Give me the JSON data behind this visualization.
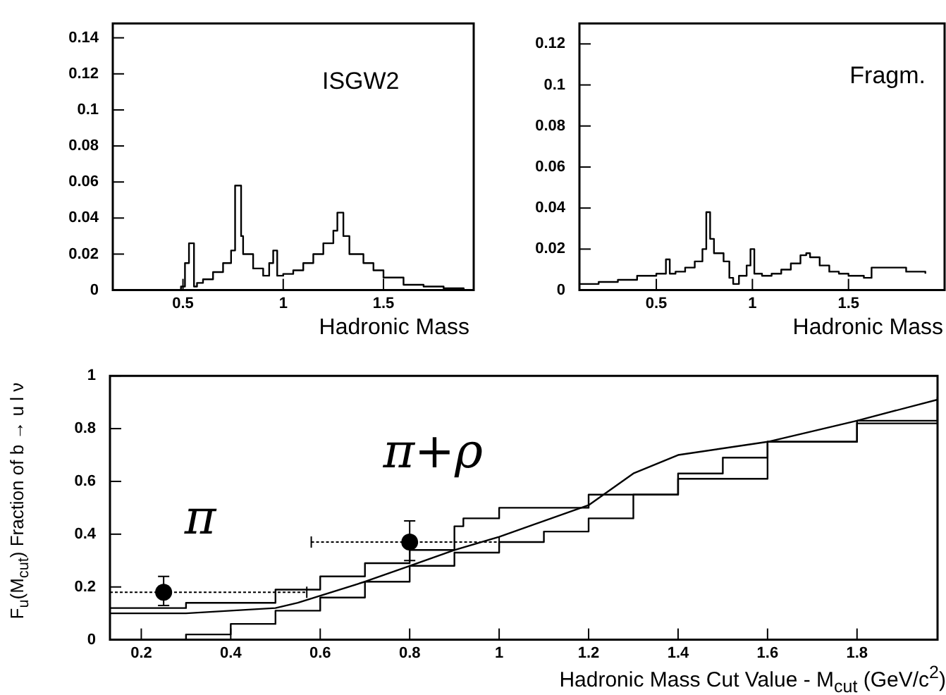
{
  "chart_data": [
    {
      "type": "step",
      "xlabel": "Hadronic Mass",
      "xlim": [
        0.15,
        1.95
      ],
      "ylim": [
        0,
        0.148
      ],
      "xticks": [
        0.5,
        1,
        1.5
      ],
      "yticks": [
        0,
        0.02,
        0.04,
        0.06,
        0.08,
        0.1,
        0.12,
        0.14
      ],
      "annotations": [
        "ISGW2"
      ],
      "series": [
        {
          "color": "#000000",
          "x": [
            0.15,
            0.49,
            0.51,
            0.53,
            0.555,
            0.57,
            0.6,
            0.65,
            0.7,
            0.74,
            0.76,
            0.79,
            0.8,
            0.85,
            0.9,
            0.93,
            0.95,
            0.97,
            1.0,
            1.05,
            1.1,
            1.15,
            1.2,
            1.25,
            1.27,
            1.3,
            1.33,
            1.4,
            1.45,
            1.5,
            1.6,
            1.7,
            1.8,
            1.9
          ],
          "values": [
            0,
            0.002,
            0.015,
            0.026,
            0.002,
            0.004,
            0.006,
            0.01,
            0.015,
            0.022,
            0.058,
            0.03,
            0.02,
            0.012,
            0.008,
            0.015,
            0.022,
            0.008,
            0.009,
            0.011,
            0.015,
            0.02,
            0.026,
            0.033,
            0.043,
            0.03,
            0.02,
            0.015,
            0.011,
            0.007,
            0.003,
            0.002,
            0.001,
            0
          ]
        }
      ]
    },
    {
      "type": "step",
      "xlabel": "Hadronic Mass",
      "xlim": [
        0.1,
        2.0
      ],
      "ylim": [
        0,
        0.13
      ],
      "xticks": [
        0.5,
        1,
        1.5
      ],
      "yticks": [
        0,
        0.02,
        0.04,
        0.06,
        0.08,
        0.1,
        0.12
      ],
      "annotations": [
        "Fragm."
      ],
      "series": [
        {
          "color": "#000000",
          "x": [
            0.1,
            0.2,
            0.3,
            0.4,
            0.5,
            0.55,
            0.57,
            0.6,
            0.65,
            0.7,
            0.74,
            0.76,
            0.78,
            0.8,
            0.85,
            0.88,
            0.9,
            0.93,
            0.97,
            0.99,
            1.01,
            1.05,
            1.1,
            1.15,
            1.2,
            1.25,
            1.28,
            1.3,
            1.35,
            1.4,
            1.45,
            1.5,
            1.58,
            1.62,
            1.7,
            1.8,
            1.9
          ],
          "values": [
            0.003,
            0.004,
            0.005,
            0.007,
            0.008,
            0.015,
            0.008,
            0.009,
            0.011,
            0.014,
            0.02,
            0.038,
            0.025,
            0.018,
            0.014,
            0.006,
            0.003,
            0.007,
            0.012,
            0.02,
            0.008,
            0.007,
            0.008,
            0.01,
            0.013,
            0.017,
            0.018,
            0.016,
            0.012,
            0.009,
            0.008,
            0.007,
            0.006,
            0.011,
            0.011,
            0.009,
            0.008
          ]
        }
      ]
    },
    {
      "type": "line",
      "xlabel": "Hadronic Mass Cut Value - M$_{cut}$ (GeV/c$^{2}$)",
      "ylabel": "F$_{u}$(M$_{cut}$) Fraction of b → u l ν",
      "xlim": [
        0.13,
        1.98
      ],
      "ylim": [
        0,
        1
      ],
      "xticks": [
        0.2,
        0.4,
        0.6,
        0.8,
        1,
        1.2,
        1.4,
        1.6,
        1.8
      ],
      "yticks": [
        0,
        0.2,
        0.4,
        0.6,
        0.8,
        1
      ],
      "annotations": [
        "π",
        "π+ρ"
      ],
      "series": [
        {
          "type": "step",
          "color": "#000000",
          "x": [
            0.13,
            0.3,
            0.5,
            0.6,
            0.7,
            0.8,
            0.9,
            0.92,
            1.0,
            1.2,
            1.4,
            1.6,
            1.8,
            1.98
          ],
          "values": [
            0.12,
            0.14,
            0.19,
            0.24,
            0.29,
            0.34,
            0.43,
            0.46,
            0.5,
            0.55,
            0.61,
            0.75,
            0.82,
            0.92
          ]
        },
        {
          "color": "#000000",
          "x": [
            0.13,
            0.3,
            0.5,
            0.55,
            0.7,
            0.8,
            0.9,
            1.0,
            1.2,
            1.3,
            1.4,
            1.6,
            1.8,
            1.98
          ],
          "values": [
            0.1,
            0.1,
            0.12,
            0.14,
            0.22,
            0.28,
            0.34,
            0.39,
            0.51,
            0.63,
            0.7,
            0.75,
            0.83,
            0.91
          ]
        },
        {
          "type": "step",
          "color": "#000000",
          "x": [
            0.13,
            0.3,
            0.4,
            0.5,
            0.6,
            0.7,
            0.8,
            0.9,
            1.0,
            1.1,
            1.2,
            1.3,
            1.4,
            1.5,
            1.6,
            1.8,
            1.98
          ],
          "values": [
            0,
            0.02,
            0.06,
            0.11,
            0.16,
            0.22,
            0.28,
            0.33,
            0.37,
            0.41,
            0.46,
            0.55,
            0.63,
            0.69,
            0.75,
            0.83,
            0.91
          ]
        },
        {
          "type": "scatter",
          "marker": "circle",
          "color": "#000000",
          "x": [
            0.25,
            0.8
          ],
          "values": [
            0.18,
            0.37
          ],
          "errors": [
            [
              0.13,
              0.24
            ],
            [
              0.3,
              0.45
            ]
          ],
          "xerrors": [
            [
              0.13,
              0.57
            ],
            [
              0.58,
              1.0
            ]
          ]
        }
      ]
    }
  ]
}
